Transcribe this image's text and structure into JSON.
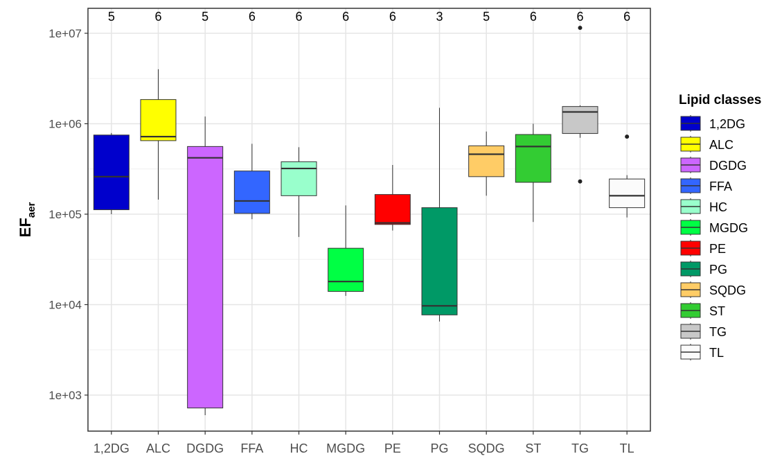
{
  "chart_data": {
    "type": "box",
    "y_scale": "log10",
    "ylim": [
      500,
      15000000
    ],
    "ylabel_main": "EF",
    "ylabel_sub": "aer",
    "xlabel": "",
    "y_ticks": [
      {
        "value": 1000,
        "label": "1e+03"
      },
      {
        "value": 10000,
        "label": "1e+04"
      },
      {
        "value": 100000,
        "label": "1e+05"
      },
      {
        "value": 1000000,
        "label": "1e+06"
      },
      {
        "value": 10000000,
        "label": "1e+07"
      }
    ],
    "grid": true,
    "legend_title": "Lipid classes",
    "legend_position": "right",
    "categories": [
      "1,2DG",
      "ALC",
      "DGDG",
      "FFA",
      "HC",
      "MGDG",
      "PE",
      "PG",
      "SQDG",
      "ST",
      "TG",
      "TL"
    ],
    "series": [
      {
        "name": "1,2DG",
        "color": "#0000CC",
        "n": "5",
        "whisker_low": 100000,
        "q1": 112000,
        "median": 260000,
        "q3": 750000,
        "whisker_high": 790000,
        "outliers": []
      },
      {
        "name": "ALC",
        "color": "#FFFF00",
        "n": "6",
        "whisker_low": 145000,
        "q1": 650000,
        "median": 720000,
        "q3": 1850000,
        "whisker_high": 4000000,
        "outliers": []
      },
      {
        "name": "DGDG",
        "color": "#CC66FF",
        "n": "5",
        "whisker_low": 600,
        "q1": 720,
        "median": 420000,
        "q3": 560000,
        "whisker_high": 1200000,
        "outliers": []
      },
      {
        "name": "FFA",
        "color": "#3366FF",
        "n": "6",
        "whisker_low": 88000,
        "q1": 102000,
        "median": 140000,
        "q3": 300000,
        "whisker_high": 600000,
        "outliers": []
      },
      {
        "name": "HC",
        "color": "#99FFCC",
        "n": "6",
        "whisker_low": 56000,
        "q1": 160000,
        "median": 320000,
        "q3": 380000,
        "whisker_high": 550000,
        "outliers": []
      },
      {
        "name": "MGDG",
        "color": "#00FF44",
        "n": "6",
        "whisker_low": 12500,
        "q1": 14000,
        "median": 18000,
        "q3": 42000,
        "whisker_high": 125000,
        "outliers": []
      },
      {
        "name": "PE",
        "color": "#FF0000",
        "n": "6",
        "whisker_low": 66000,
        "q1": 77000,
        "median": 80000,
        "q3": 165000,
        "whisker_high": 350000,
        "outliers": []
      },
      {
        "name": "PG",
        "color": "#009966",
        "n": "3",
        "whisker_low": 6500,
        "q1": 7700,
        "median": 9700,
        "q3": 118000,
        "whisker_high": 1500000,
        "outliers": []
      },
      {
        "name": "SQDG",
        "color": "#FFCC66",
        "n": "5",
        "whisker_low": 160000,
        "q1": 260000,
        "median": 460000,
        "q3": 570000,
        "whisker_high": 820000,
        "outliers": []
      },
      {
        "name": "ST",
        "color": "#33CC33",
        "n": "6",
        "whisker_low": 82000,
        "q1": 225000,
        "median": 560000,
        "q3": 760000,
        "whisker_high": 1000000,
        "outliers": []
      },
      {
        "name": "TG",
        "color": "#C8C8C8",
        "n": "6",
        "whisker_low": 700000,
        "q1": 780000,
        "median": 1350000,
        "q3": 1550000,
        "whisker_high": 1600000,
        "outliers": [
          230000,
          11500000
        ]
      },
      {
        "name": "TL",
        "color": "#FBFBFB",
        "n": "6",
        "whisker_low": 92000,
        "q1": 118000,
        "median": 160000,
        "q3": 245000,
        "whisker_high": 270000,
        "outliers": [
          720000
        ]
      }
    ]
  }
}
